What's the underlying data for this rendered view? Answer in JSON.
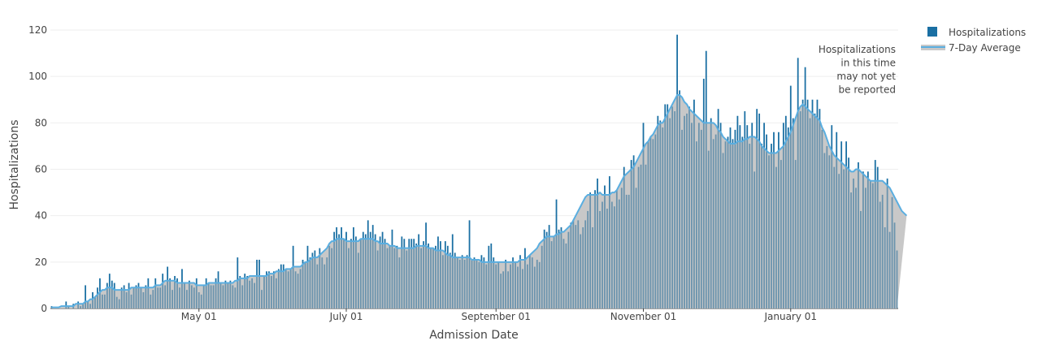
{
  "chart_data": {
    "type": "bar",
    "title": "",
    "xlabel": "Admission Date",
    "ylabel": "Hospitalizations",
    "ylim": [
      0,
      120
    ],
    "yticks": [
      0,
      20,
      40,
      60,
      80,
      100,
      120
    ],
    "x_start": "2020-03-01",
    "xticks": [
      {
        "date": "2020-05-01",
        "label": "May 01"
      },
      {
        "date": "2020-07-01",
        "label": "July 01"
      },
      {
        "date": "2020-09-01",
        "label": "September 01"
      },
      {
        "date": "2020-11-01",
        "label": "November 01"
      },
      {
        "date": "2021-01-01",
        "label": "January 01"
      }
    ],
    "grid": true,
    "legend_position": "top-right",
    "series": [
      {
        "name": "Hospitalizations",
        "kind": "bar",
        "color": "#1a6fa3",
        "values": [
          1,
          0,
          0,
          0,
          0,
          0,
          3,
          1,
          0,
          2,
          0,
          3,
          1,
          2,
          10,
          3,
          2,
          7,
          5,
          9,
          13,
          6,
          6,
          11,
          15,
          12,
          11,
          5,
          4,
          9,
          10,
          7,
          11,
          6,
          9,
          10,
          11,
          9,
          7,
          10,
          13,
          6,
          8,
          13,
          9,
          9,
          15,
          10,
          18,
          13,
          8,
          14,
          13,
          9,
          17,
          11,
          8,
          12,
          10,
          9,
          13,
          7,
          6,
          10,
          13,
          11,
          10,
          10,
          13,
          16,
          11,
          10,
          12,
          11,
          12,
          10,
          9,
          22,
          14,
          10,
          15,
          14,
          12,
          13,
          11,
          21,
          21,
          8,
          14,
          16,
          16,
          14,
          16,
          13,
          17,
          19,
          19,
          17,
          16,
          17,
          27,
          16,
          15,
          17,
          21,
          20,
          27,
          22,
          24,
          25,
          19,
          26,
          22,
          19,
          22,
          27,
          26,
          33,
          35,
          32,
          35,
          30,
          33,
          26,
          30,
          35,
          31,
          24,
          30,
          33,
          32,
          38,
          33,
          36,
          32,
          25,
          31,
          33,
          30,
          26,
          27,
          34,
          26,
          27,
          22,
          31,
          30,
          25,
          30,
          30,
          30,
          28,
          32,
          26,
          29,
          37,
          28,
          26,
          26,
          27,
          31,
          29,
          23,
          29,
          27,
          24,
          32,
          24,
          22,
          21,
          23,
          21,
          23,
          38,
          21,
          22,
          21,
          20,
          23,
          22,
          19,
          27,
          28,
          22,
          19,
          20,
          15,
          16,
          21,
          16,
          19,
          22,
          20,
          18,
          23,
          17,
          26,
          19,
          23,
          22,
          18,
          21,
          20,
          27,
          34,
          33,
          36,
          29,
          31,
          47,
          34,
          35,
          30,
          28,
          33,
          37,
          38,
          36,
          38,
          32,
          35,
          38,
          42,
          50,
          35,
          51,
          56,
          42,
          46,
          53,
          43,
          57,
          46,
          44,
          51,
          47,
          52,
          61,
          49,
          49,
          64,
          66,
          52,
          61,
          62,
          80,
          62,
          72,
          74,
          73,
          75,
          83,
          81,
          78,
          88,
          88,
          82,
          87,
          85,
          118,
          94,
          77,
          83,
          84,
          87,
          80,
          90,
          72,
          80,
          77,
          99,
          111,
          68,
          82,
          73,
          75,
          86,
          80,
          67,
          72,
          74,
          78,
          73,
          77,
          83,
          79,
          74,
          85,
          79,
          71,
          80,
          59,
          86,
          84,
          71,
          80,
          75,
          66,
          71,
          76,
          61,
          76,
          64,
          80,
          83,
          78,
          96,
          82,
          64,
          108,
          85,
          90,
          104,
          90,
          82,
          90,
          84,
          90,
          86,
          77,
          67,
          70,
          66,
          79,
          61,
          76,
          58,
          72,
          60,
          72,
          65,
          50,
          56,
          52,
          63,
          42,
          59,
          52,
          59,
          55,
          54,
          64,
          61,
          46,
          49,
          35,
          56,
          33,
          48,
          37,
          25
        ]
      },
      {
        "name": "7-Day Average",
        "kind": "line",
        "color": "#5aaee0",
        "fill": "#c8c8c8",
        "values": [
          0.5,
          0.5,
          0.5,
          0.5,
          1,
          1,
          1,
          1,
          1,
          1,
          2,
          2,
          2,
          2,
          3,
          3,
          4,
          4,
          5,
          6,
          7,
          8,
          8,
          9,
          9,
          9,
          8,
          8,
          8,
          8,
          8,
          8,
          8,
          9,
          9,
          9,
          9,
          9,
          9,
          9,
          9,
          9,
          9,
          10,
          10,
          10,
          11,
          12,
          12,
          12,
          12,
          12,
          11,
          11,
          11,
          11,
          11,
          11,
          11,
          11,
          10,
          10,
          10,
          10,
          10,
          11,
          11,
          11,
          11,
          11,
          11,
          11,
          11,
          11,
          11,
          11,
          12,
          12,
          13,
          13,
          13,
          13,
          14,
          14,
          14,
          14,
          14,
          14,
          14,
          14,
          15,
          15,
          15,
          16,
          16,
          16,
          16,
          17,
          17,
          17,
          18,
          18,
          18,
          18,
          19,
          20,
          20,
          21,
          22,
          22,
          22,
          23,
          24,
          25,
          26,
          28,
          29,
          29,
          30,
          30,
          30,
          30,
          29,
          29,
          29,
          29,
          29,
          29,
          30,
          30,
          30,
          30,
          30,
          30,
          29,
          29,
          28,
          28,
          28,
          28,
          27,
          27,
          27,
          26,
          26,
          26,
          26,
          26,
          26,
          26,
          26,
          27,
          27,
          27,
          27,
          27,
          26,
          26,
          26,
          25,
          25,
          25,
          25,
          24,
          23,
          23,
          22,
          22,
          22,
          22,
          22,
          22,
          22,
          22,
          21,
          21,
          21,
          21,
          20,
          20,
          20,
          20,
          20,
          20,
          20,
          20,
          20,
          20,
          20,
          20,
          20,
          20,
          20,
          20,
          21,
          21,
          21,
          22,
          23,
          24,
          25,
          26,
          28,
          29,
          30,
          31,
          31,
          31,
          31,
          32,
          32,
          33,
          33,
          34,
          35,
          36,
          38,
          40,
          42,
          44,
          46,
          48,
          49,
          49,
          49,
          49,
          49,
          50,
          49,
          49,
          49,
          49,
          50,
          50,
          51,
          53,
          55,
          57,
          58,
          59,
          60,
          61,
          63,
          65,
          67,
          69,
          71,
          72,
          74,
          75,
          77,
          79,
          80,
          80,
          82,
          84,
          86,
          88,
          90,
          92,
          92,
          91,
          89,
          88,
          86,
          85,
          84,
          83,
          82,
          81,
          80,
          80,
          80,
          80,
          80,
          79,
          77,
          76,
          74,
          73,
          72,
          71,
          71,
          71,
          72,
          72,
          72,
          73,
          73,
          74,
          74,
          74,
          73,
          72,
          70,
          69,
          68,
          67,
          67,
          67,
          67,
          68,
          69,
          70,
          72,
          74,
          76,
          79,
          82,
          85,
          87,
          88,
          87,
          86,
          85,
          84,
          83,
          82,
          81,
          78,
          76,
          73,
          70,
          68,
          66,
          65,
          64,
          63,
          62,
          61,
          60,
          59,
          59,
          60,
          60,
          59,
          58,
          57,
          56,
          55,
          55,
          55,
          55,
          55,
          55,
          54,
          53,
          52,
          50,
          48,
          46,
          44,
          42,
          41,
          40
        ]
      }
    ],
    "annotation": {
      "lines": [
        "Hospitalizations",
        "in this time",
        "may not yet",
        "be reported"
      ],
      "shaded_from": "2021-02-18",
      "shaded_color": "#bdbdbd"
    }
  }
}
